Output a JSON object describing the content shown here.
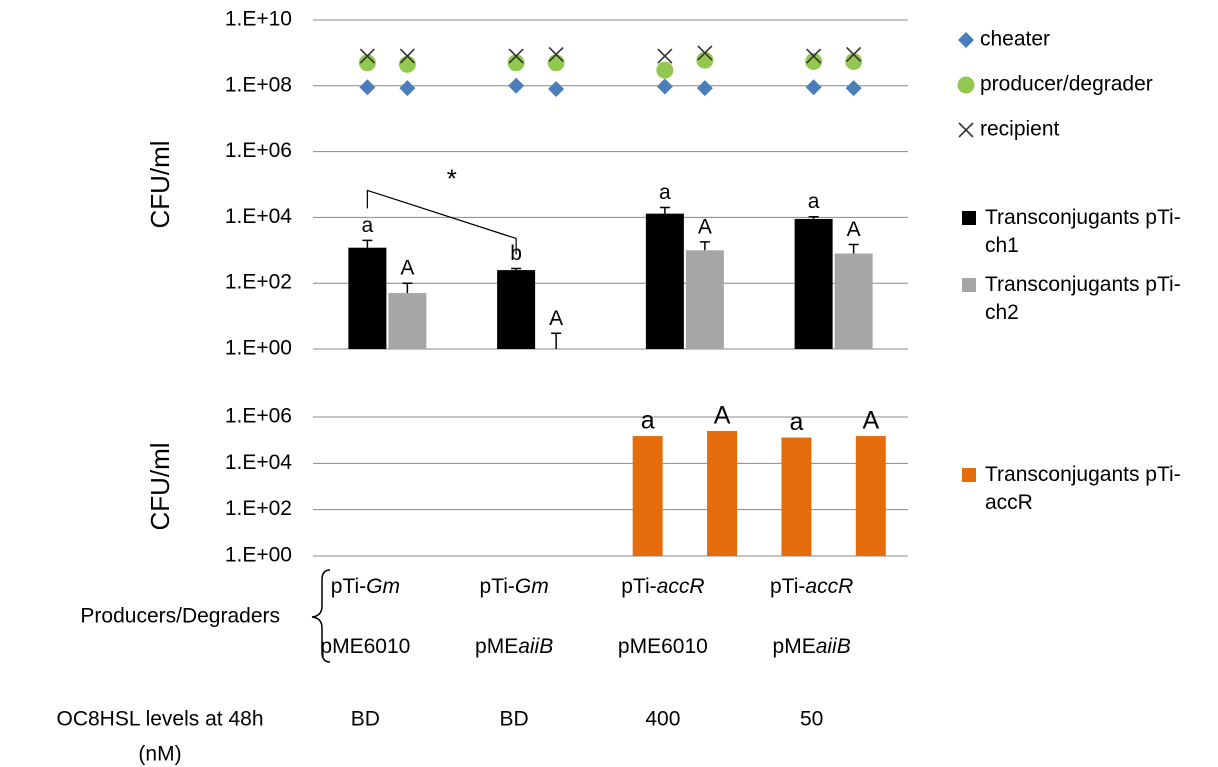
{
  "chart_data": [
    {
      "type": "bar",
      "y_label": "CFU/ml",
      "log_scale": true,
      "grid": true,
      "ylim": [
        1,
        10000000000
      ],
      "yticks": [
        {
          "value": 1,
          "label": "1.E+00"
        },
        {
          "value": 100,
          "label": "1.E+02"
        },
        {
          "value": 10000,
          "label": "1.E+04"
        },
        {
          "value": 1000000,
          "label": "1.E+06"
        },
        {
          "value": 100000000,
          "label": "1.E+08"
        },
        {
          "value": 10000000000,
          "label": "1.E+10"
        }
      ],
      "categories": [
        null,
        null,
        null,
        null
      ],
      "series": [
        {
          "name": "Transconjugants pTi-ch1",
          "color": "#000000",
          "values": [
            1200,
            250,
            13000,
            9000
          ],
          "errors": [
            800,
            30,
            7000,
            1500
          ],
          "letters": [
            "a",
            "b",
            "a",
            "a"
          ]
        },
        {
          "name": "Transconjugants pTi-ch2",
          "color": "#a6a6a6",
          "values": [
            50,
            1,
            1000,
            800
          ],
          "errors": [
            50,
            2,
            800,
            700
          ],
          "letters": [
            "A",
            "A",
            "A",
            "A"
          ]
        }
      ],
      "points": [
        {
          "name": "cheater",
          "type": "scatter",
          "marker": "diamond",
          "color": "#4a7ebb",
          "values": [
            90000000,
            85000000,
            100000000,
            80000000,
            95000000,
            85000000,
            90000000,
            85000000
          ]
        },
        {
          "name": "producer/degrader",
          "type": "scatter",
          "marker": "circle",
          "color": "#92c84f",
          "values": [
            500000000,
            450000000,
            500000000,
            500000000,
            300000000,
            600000000,
            550000000,
            550000000
          ]
        },
        {
          "name": "recipient",
          "type": "scatter",
          "marker": "cross",
          "color": "#333333",
          "values": [
            800000000,
            800000000,
            800000000,
            900000000,
            800000000,
            1000000000,
            800000000,
            900000000
          ]
        }
      ],
      "annotation": "*"
    },
    {
      "type": "bar",
      "y_label": "CFU/ml",
      "log_scale": true,
      "grid": true,
      "ylim": [
        1,
        1000000
      ],
      "yticks": [
        {
          "value": 1,
          "label": "1.E+00"
        },
        {
          "value": 100,
          "label": "1.E+02"
        },
        {
          "value": 10000,
          "label": "1.E+04"
        },
        {
          "value": 1000000,
          "label": "1.E+06"
        }
      ],
      "categories": [
        null,
        null,
        null,
        null,
        null,
        null,
        null,
        null
      ],
      "series": [
        {
          "name": "Transconjugants pTi-accR",
          "color": "#e46c0a",
          "values": [
            null,
            null,
            null,
            null,
            150000,
            250000,
            130000,
            150000
          ],
          "letters": [
            null,
            null,
            null,
            null,
            "a",
            "A",
            "a",
            "A"
          ]
        }
      ]
    }
  ],
  "x_table": {
    "producers_title": "Producers/Degraders",
    "columns": [
      {
        "line1": [
          {
            "text": "pTi-"
          },
          {
            "text": "Gm",
            "italic": true
          }
        ],
        "line2": [
          {
            "text": "pME6010"
          }
        ]
      },
      {
        "line1": [
          {
            "text": "pTi-"
          },
          {
            "text": "Gm",
            "italic": true
          }
        ],
        "line2": [
          {
            "text": "pME"
          },
          {
            "text": "aiiB",
            "italic": true
          }
        ]
      },
      {
        "line1": [
          {
            "text": "pTi-"
          },
          {
            "text": "accR",
            "italic": true
          }
        ],
        "line2": [
          {
            "text": "pME6010"
          }
        ]
      },
      {
        "line1": [
          {
            "text": "pTi-"
          },
          {
            "text": "accR",
            "italic": true
          }
        ],
        "line2": [
          {
            "text": "pME"
          },
          {
            "text": "aiiB",
            "italic": true
          }
        ]
      }
    ],
    "levels_title": "OC8HSL levels at 48h",
    "levels_unit": "(nM)",
    "levels": [
      "BD",
      "BD",
      "400",
      "50"
    ]
  }
}
